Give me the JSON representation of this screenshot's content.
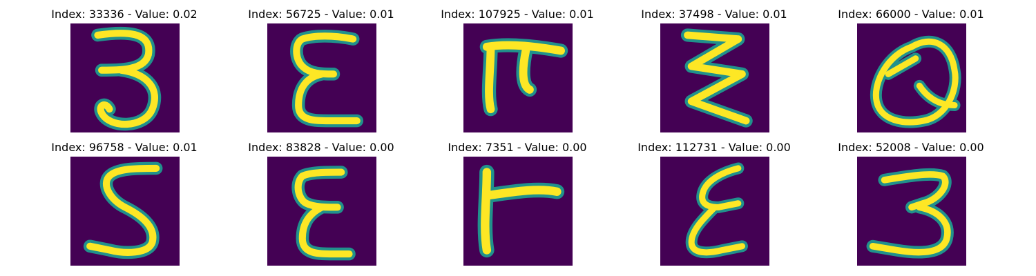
{
  "colors": {
    "background": "#440154",
    "stroke_edge": "#21918c",
    "stroke_mid": "#5ec962",
    "stroke_core": "#fde725"
  },
  "tiles": [
    {
      "title": "Index: 33336 - Value: 0.02",
      "depicts": "3"
    },
    {
      "title": "Index: 56725 - Value: 0.01",
      "depicts": "E"
    },
    {
      "title": "Index: 107925 - Value: 0.01",
      "depicts": "T"
    },
    {
      "title": "Index: 37498 - Value: 0.01",
      "depicts": "Z"
    },
    {
      "title": "Index: 66000 - Value: 0.01",
      "depicts": "Q"
    },
    {
      "title": "Index: 96758 - Value: 0.01",
      "depicts": "5"
    },
    {
      "title": "Index: 83828 - Value: 0.00",
      "depicts": "E"
    },
    {
      "title": "Index: 7351 - Value: 0.00",
      "depicts": "T"
    },
    {
      "title": "Index: 112731 - Value: 0.00",
      "depicts": "E"
    },
    {
      "title": "Index: 52008 - Value: 0.00",
      "depicts": "3"
    }
  ]
}
